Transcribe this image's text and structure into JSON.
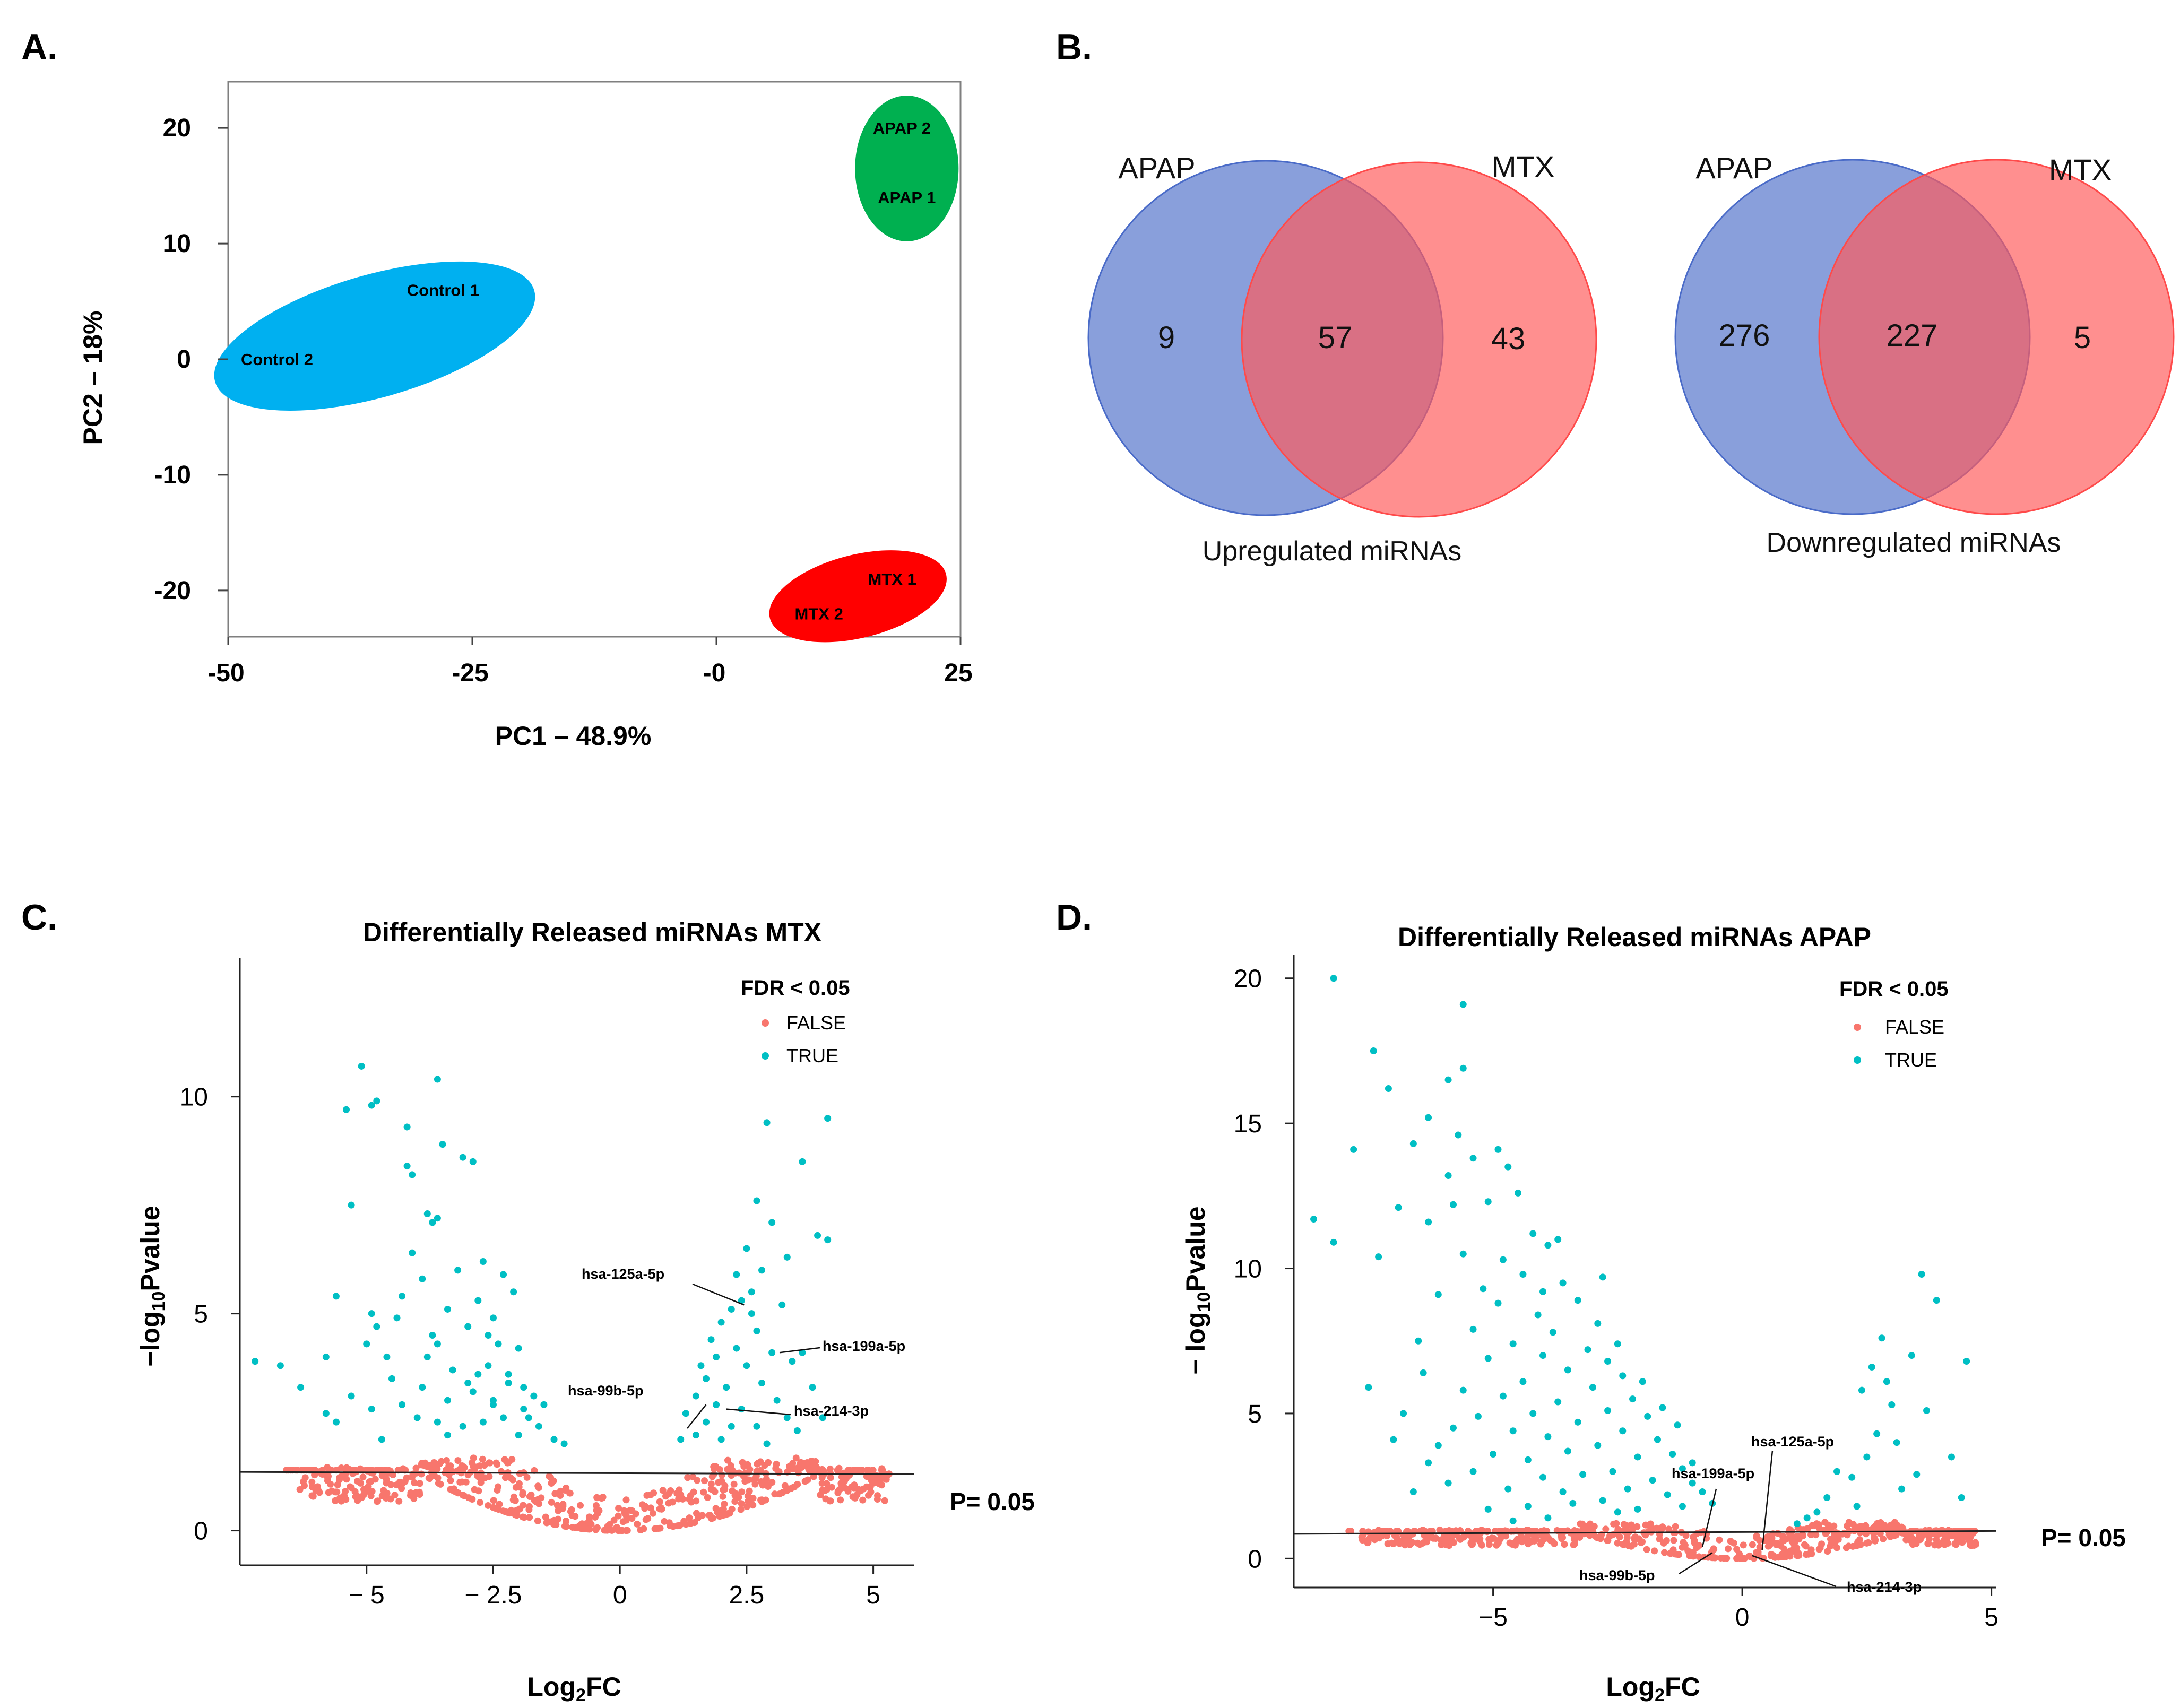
{
  "colors": {
    "control": "#00B0F0",
    "apap_ellipse": "#00B050",
    "mtx_ellipse": "#FF0000",
    "venn_blue": "#4A6BC8",
    "venn_red": "#FF5A5A",
    "false_points": "#F8766D",
    "true_points": "#00BFC4"
  },
  "panels": {
    "a": "A.",
    "b": "B.",
    "c": "C.",
    "d": "D."
  },
  "chart_data": [
    {
      "id": "pca",
      "type": "scatter",
      "title": "",
      "xlabel": "PC1 – 48.9%",
      "ylabel": "PC2 – 18%",
      "xlim": [
        -50,
        25
      ],
      "ylim": [
        -24,
        24
      ],
      "xticks": [
        -50,
        -25,
        0,
        25
      ],
      "xtick_labels": [
        "-50",
        "-25",
        "-0",
        "25"
      ],
      "yticks": [
        20,
        10,
        0,
        -10,
        -20
      ],
      "ytick_labels": [
        "20",
        "10",
        "0",
        "-10",
        "-20"
      ],
      "groups": [
        {
          "name": "Control",
          "color_key": "control",
          "cx": -35,
          "cy": 2,
          "rx": 17,
          "ry": 5.3,
          "angle_deg": -16,
          "samples": [
            {
              "label": "Control 1",
              "x": -28,
              "y": 6
            },
            {
              "label": "Control 2",
              "x": -45,
              "y": 0
            }
          ]
        },
        {
          "name": "APAP",
          "color_key": "apap_ellipse",
          "cx": 19.5,
          "cy": 16.5,
          "rx": 5.3,
          "ry": 6.3,
          "angle_deg": 0,
          "samples": [
            {
              "label": "APAP 2",
              "x": 19,
              "y": 20
            },
            {
              "label": "APAP 1",
              "x": 19.5,
              "y": 14
            }
          ]
        },
        {
          "name": "MTX",
          "color_key": "mtx_ellipse",
          "cx": 14.5,
          "cy": -20.5,
          "rx": 9.3,
          "ry": 3.6,
          "angle_deg": -14,
          "samples": [
            {
              "label": "MTX 1",
              "x": 18,
              "y": -19
            },
            {
              "label": "MTX 2",
              "x": 10.5,
              "y": -22
            }
          ]
        }
      ]
    },
    {
      "id": "venn_up",
      "type": "venn",
      "sets": [
        "APAP",
        "MTX"
      ],
      "only_a": "9",
      "intersection": "57",
      "only_b": "43",
      "caption": "Upregulated miRNAs"
    },
    {
      "id": "venn_down",
      "type": "venn",
      "sets": [
        "APAP",
        "MTX"
      ],
      "only_a": "276",
      "intersection": "227",
      "only_b": "5",
      "caption": "Downregulated miRNAs"
    },
    {
      "id": "volcano_mtx",
      "type": "scatter",
      "title": "Differentially  Released  miRNAs  MTX",
      "xlabel": "Log₂FC",
      "ylabel": "−log₁₀Pvalue",
      "xlim": [
        -7.5,
        5.8
      ],
      "ylim": [
        -0.8,
        13.2
      ],
      "xticks": [
        -5,
        -2.5,
        0,
        2.5,
        5
      ],
      "xtick_labels": [
        "− 5",
        "− 2.5",
        "0",
        "2.5",
        "5"
      ],
      "yticks": [
        0,
        5,
        10
      ],
      "ytick_labels": [
        "0",
        "5",
        "10"
      ],
      "legend": {
        "title": "FDR < 0.05",
        "items": [
          "FALSE",
          "TRUE"
        ],
        "position": "top-right"
      },
      "threshold": {
        "label": "P= 0.05",
        "y_left": 1.35,
        "y_right": 1.3
      },
      "annotations": [
        {
          "label": "hsa-125a-5p",
          "x": 2.45,
          "y": 5.2
        },
        {
          "label": "hsa-199a-5p",
          "x": 3.15,
          "y": 4.1
        },
        {
          "label": "hsa-99b-5p",
          "x": 1.7,
          "y": 2.9
        },
        {
          "label": "hsa-214-3p",
          "x": 2.1,
          "y": 2.8
        }
      ],
      "true_points": [
        [
          -5.1,
          10.7
        ],
        [
          -5.4,
          9.7
        ],
        [
          -4.8,
          9.9
        ],
        [
          -4.9,
          9.8
        ],
        [
          -3.6,
          10.4
        ],
        [
          -4.2,
          9.3
        ],
        [
          -3.5,
          8.9
        ],
        [
          -3.1,
          8.6
        ],
        [
          -2.9,
          8.5
        ],
        [
          -4.2,
          8.4
        ],
        [
          -4.1,
          8.2
        ],
        [
          -5.3,
          7.5
        ],
        [
          -3.8,
          7.3
        ],
        [
          -3.6,
          7.2
        ],
        [
          -3.7,
          7.1
        ],
        [
          -4.1,
          6.4
        ],
        [
          -2.7,
          6.2
        ],
        [
          -2.3,
          5.9
        ],
        [
          -2.1,
          5.5
        ],
        [
          -5.6,
          5.4
        ],
        [
          -4.9,
          5.0
        ],
        [
          -4.4,
          4.9
        ],
        [
          -3.4,
          5.1
        ],
        [
          -3.0,
          4.7
        ],
        [
          -2.6,
          4.5
        ],
        [
          -2.4,
          4.3
        ],
        [
          -2.0,
          4.2
        ],
        [
          -5.0,
          4.3
        ],
        [
          -4.6,
          4.0
        ],
        [
          -5.8,
          4.0
        ],
        [
          -3.8,
          4.0
        ],
        [
          -3.3,
          3.7
        ],
        [
          -2.8,
          3.6
        ],
        [
          -2.6,
          3.8
        ],
        [
          -2.2,
          3.4
        ],
        [
          -1.9,
          3.3
        ],
        [
          -1.7,
          3.1
        ],
        [
          -1.5,
          2.9
        ],
        [
          -2.5,
          3.0
        ],
        [
          -2.9,
          3.2
        ],
        [
          -3.4,
          3.0
        ],
        [
          -3.9,
          3.3
        ],
        [
          -4.5,
          3.5
        ],
        [
          -4.3,
          2.9
        ],
        [
          -5.3,
          3.1
        ],
        [
          -6.7,
          3.8
        ],
        [
          -7.2,
          3.9
        ],
        [
          -6.3,
          3.3
        ],
        [
          -5.8,
          2.7
        ],
        [
          -5.6,
          2.5
        ],
        [
          -4.9,
          2.8
        ],
        [
          -4.0,
          2.6
        ],
        [
          -3.6,
          2.5
        ],
        [
          -3.1,
          2.4
        ],
        [
          -2.7,
          2.5
        ],
        [
          -2.3,
          2.6
        ],
        [
          -1.8,
          2.6
        ],
        [
          -1.6,
          2.4
        ],
        [
          -1.3,
          2.1
        ],
        [
          -2.0,
          2.2
        ],
        [
          -4.7,
          2.1
        ],
        [
          -3.4,
          2.2
        ],
        [
          -1.1,
          2.0
        ],
        [
          -2.5,
          2.9
        ],
        [
          -3.0,
          3.4
        ],
        [
          -3.7,
          4.5
        ],
        [
          -4.3,
          5.4
        ],
        [
          -2.8,
          5.3
        ],
        [
          -3.2,
          6.0
        ],
        [
          -3.9,
          5.8
        ],
        [
          -2.5,
          4.9
        ],
        [
          -3.6,
          4.3
        ],
        [
          -4.8,
          4.7
        ],
        [
          -2.2,
          3.6
        ],
        [
          -1.9,
          2.8
        ],
        [
          2.9,
          9.4
        ],
        [
          4.1,
          9.5
        ],
        [
          3.6,
          8.5
        ],
        [
          2.7,
          7.6
        ],
        [
          3.0,
          7.1
        ],
        [
          3.9,
          6.8
        ],
        [
          4.1,
          6.7
        ],
        [
          2.5,
          6.5
        ],
        [
          3.3,
          6.3
        ],
        [
          2.8,
          6.0
        ],
        [
          2.3,
          5.9
        ],
        [
          2.4,
          5.3
        ],
        [
          2.2,
          5.1
        ],
        [
          2.6,
          5.0
        ],
        [
          3.2,
          5.2
        ],
        [
          2.0,
          4.8
        ],
        [
          2.7,
          4.6
        ],
        [
          1.8,
          4.4
        ],
        [
          2.3,
          4.2
        ],
        [
          3.0,
          4.1
        ],
        [
          3.6,
          4.1
        ],
        [
          1.9,
          4.0
        ],
        [
          1.6,
          3.8
        ],
        [
          2.5,
          3.8
        ],
        [
          3.4,
          3.9
        ],
        [
          1.7,
          3.5
        ],
        [
          2.1,
          3.3
        ],
        [
          2.8,
          3.4
        ],
        [
          1.5,
          3.1
        ],
        [
          1.9,
          2.9
        ],
        [
          2.4,
          2.8
        ],
        [
          3.1,
          3.0
        ],
        [
          3.8,
          3.3
        ],
        [
          1.3,
          2.7
        ],
        [
          1.7,
          2.5
        ],
        [
          2.2,
          2.4
        ],
        [
          2.7,
          2.4
        ],
        [
          1.5,
          2.2
        ],
        [
          2.0,
          2.1
        ],
        [
          3.5,
          2.3
        ],
        [
          4.0,
          2.6
        ],
        [
          2.9,
          2.0
        ],
        [
          1.2,
          2.1
        ],
        [
          3.3,
          2.6
        ],
        [
          2.6,
          5.5
        ]
      ]
    },
    {
      "id": "volcano_apap",
      "type": "scatter",
      "title": "Differentially  Released  miRNAs  APAP",
      "xlabel": "Log₂FC",
      "ylabel": "− log₁₀Pvalue",
      "xlim": [
        -9.0,
        5.1
      ],
      "ylim": [
        -1.0,
        20.8
      ],
      "xticks": [
        -5,
        0,
        5
      ],
      "xtick_labels": [
        "−5",
        "0",
        "5"
      ],
      "yticks": [
        0,
        5,
        10,
        15,
        20
      ],
      "ytick_labels": [
        "0",
        "5",
        "10",
        "15",
        "20"
      ],
      "legend": {
        "title": "FDR < 0.05",
        "items": [
          "FALSE",
          "TRUE"
        ],
        "position": "top-right"
      },
      "threshold": {
        "label": "P= 0.05",
        "y_left": 0.85,
        "y_right": 0.95
      },
      "annotations": [
        {
          "label": "hsa-125a-5p",
          "x": 0.4,
          "y": 0.3
        },
        {
          "label": "hsa-199a-5p",
          "x": -0.8,
          "y": 0.4
        },
        {
          "label": "hsa-99b-5p",
          "x": -0.6,
          "y": 0.2
        },
        {
          "label": "hsa-214-3p",
          "x": 0.2,
          "y": 0.1
        }
      ],
      "true_points": [
        [
          -8.2,
          20.0
        ],
        [
          -5.6,
          19.1
        ],
        [
          -7.4,
          17.5
        ],
        [
          -5.6,
          16.9
        ],
        [
          -5.9,
          16.5
        ],
        [
          -7.1,
          16.2
        ],
        [
          -6.3,
          15.2
        ],
        [
          -5.7,
          14.6
        ],
        [
          -7.8,
          14.1
        ],
        [
          -6.6,
          14.3
        ],
        [
          -4.9,
          14.1
        ],
        [
          -5.4,
          13.8
        ],
        [
          -4.7,
          13.5
        ],
        [
          -5.9,
          13.2
        ],
        [
          -6.9,
          12.1
        ],
        [
          -8.6,
          11.7
        ],
        [
          -5.1,
          12.3
        ],
        [
          -4.5,
          12.6
        ],
        [
          -5.8,
          12.2
        ],
        [
          -4.2,
          11.2
        ],
        [
          -6.3,
          11.6
        ],
        [
          -8.2,
          10.9
        ],
        [
          -7.3,
          10.4
        ],
        [
          -5.6,
          10.5
        ],
        [
          -4.8,
          10.3
        ],
        [
          -3.9,
          10.8
        ],
        [
          -4.4,
          9.8
        ],
        [
          -5.2,
          9.3
        ],
        [
          -3.6,
          9.5
        ],
        [
          -6.1,
          9.1
        ],
        [
          -4.9,
          8.8
        ],
        [
          -3.3,
          8.9
        ],
        [
          -4.1,
          8.4
        ],
        [
          -5.4,
          7.9
        ],
        [
          -3.8,
          7.8
        ],
        [
          -2.9,
          8.1
        ],
        [
          -4.6,
          7.4
        ],
        [
          -6.5,
          7.5
        ],
        [
          -3.1,
          7.2
        ],
        [
          -4.0,
          7.0
        ],
        [
          -5.1,
          6.9
        ],
        [
          -2.7,
          6.8
        ],
        [
          -3.5,
          6.5
        ],
        [
          -4.4,
          6.1
        ],
        [
          -6.4,
          6.4
        ],
        [
          -2.4,
          6.3
        ],
        [
          -3.0,
          5.9
        ],
        [
          -5.6,
          5.8
        ],
        [
          -4.8,
          5.6
        ],
        [
          -3.7,
          5.4
        ],
        [
          -2.2,
          5.5
        ],
        [
          -2.7,
          5.1
        ],
        [
          -4.2,
          5.0
        ],
        [
          -5.3,
          4.9
        ],
        [
          -3.3,
          4.7
        ],
        [
          -1.9,
          4.9
        ],
        [
          -2.4,
          4.4
        ],
        [
          -4.6,
          4.4
        ],
        [
          -3.9,
          4.2
        ],
        [
          -5.8,
          4.5
        ],
        [
          -1.7,
          4.1
        ],
        [
          -2.9,
          3.9
        ],
        [
          -3.5,
          3.7
        ],
        [
          -1.4,
          3.6
        ],
        [
          -2.1,
          3.5
        ],
        [
          -4.3,
          3.4
        ],
        [
          -5.0,
          3.6
        ],
        [
          -6.1,
          3.9
        ],
        [
          -1.2,
          3.1
        ],
        [
          -2.6,
          3.0
        ],
        [
          -3.2,
          2.9
        ],
        [
          -1.8,
          2.7
        ],
        [
          -4.0,
          2.8
        ],
        [
          -5.4,
          3.0
        ],
        [
          -1.0,
          2.6
        ],
        [
          -2.3,
          2.4
        ],
        [
          -3.6,
          2.3
        ],
        [
          -4.7,
          2.4
        ],
        [
          -1.5,
          2.2
        ],
        [
          -2.8,
          2.0
        ],
        [
          -5.9,
          2.6
        ],
        [
          -3.4,
          1.9
        ],
        [
          -4.3,
          1.8
        ],
        [
          -6.6,
          2.3
        ],
        [
          -1.2,
          1.8
        ],
        [
          -2.1,
          1.7
        ],
        [
          -5.1,
          1.7
        ],
        [
          -3.9,
          1.4
        ],
        [
          -2.5,
          1.6
        ],
        [
          -4.6,
          1.3
        ],
        [
          -6.3,
          3.3
        ],
        [
          -7.0,
          4.1
        ],
        [
          -6.8,
          5.0
        ],
        [
          -7.5,
          5.9
        ],
        [
          -4.0,
          9.2
        ],
        [
          -3.7,
          11.0
        ],
        [
          -2.8,
          9.7
        ],
        [
          -2.5,
          7.4
        ],
        [
          -2.0,
          6.1
        ],
        [
          -1.6,
          5.2
        ],
        [
          -1.3,
          4.6
        ],
        [
          -1.0,
          3.3
        ],
        [
          -0.8,
          2.3
        ],
        [
          -0.6,
          1.9
        ],
        [
          1.3,
          1.4
        ],
        [
          1.7,
          2.1
        ],
        [
          2.2,
          2.8
        ],
        [
          2.5,
          3.5
        ],
        [
          2.7,
          4.3
        ],
        [
          3.0,
          5.3
        ],
        [
          2.6,
          6.6
        ],
        [
          3.4,
          7.0
        ],
        [
          2.8,
          7.6
        ],
        [
          3.9,
          8.9
        ],
        [
          3.6,
          9.8
        ],
        [
          4.5,
          6.8
        ],
        [
          4.2,
          3.5
        ],
        [
          4.4,
          2.1
        ],
        [
          3.2,
          2.4
        ],
        [
          1.9,
          3.0
        ],
        [
          2.4,
          5.8
        ],
        [
          1.5,
          1.6
        ],
        [
          3.1,
          4.0
        ],
        [
          2.9,
          6.1
        ],
        [
          3.7,
          5.1
        ],
        [
          2.3,
          1.8
        ],
        [
          1.1,
          1.2
        ],
        [
          3.5,
          2.9
        ]
      ]
    }
  ]
}
